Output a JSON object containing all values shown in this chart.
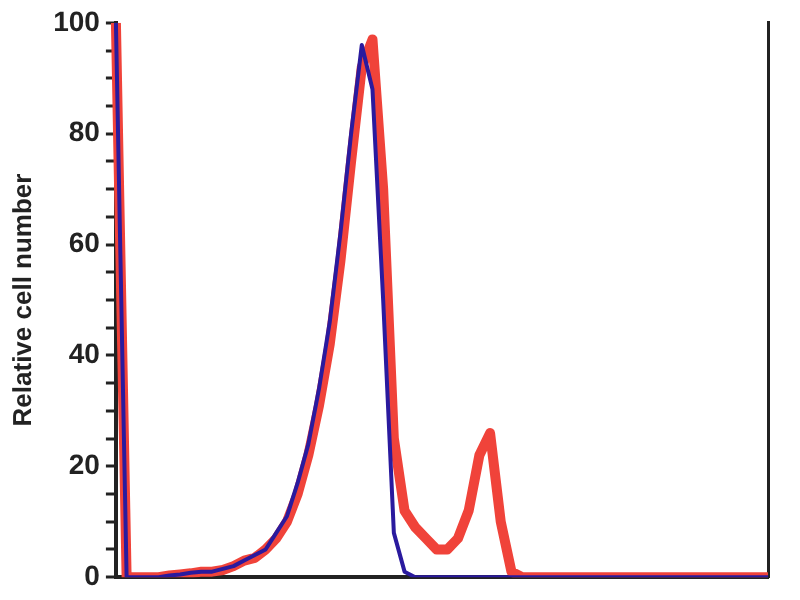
{
  "chart_data": {
    "type": "line",
    "ylabel": "Relative cell number",
    "categories": [
      null,
      null,
      null,
      null,
      null,
      null,
      null,
      null,
      null,
      null,
      null,
      null,
      null,
      null,
      null,
      null,
      null,
      null,
      null,
      null,
      null,
      null,
      null,
      null,
      null,
      null,
      null,
      null,
      null,
      null,
      null,
      null,
      null,
      null,
      null,
      null,
      null,
      null,
      null,
      null,
      null,
      null,
      null,
      null,
      null,
      null,
      null,
      null,
      null,
      null,
      null,
      null,
      null,
      null,
      null,
      null,
      null,
      null,
      null,
      null,
      null,
      null
    ],
    "series": [
      {
        "color": "#f0433a",
        "values": [
          100,
          0,
          0,
          0,
          0,
          0.3,
          0.5,
          0.7,
          1,
          1,
          1.3,
          2,
          3,
          3.5,
          5,
          7,
          10,
          15,
          22,
          31,
          42,
          57,
          75,
          92,
          97,
          70,
          25,
          12,
          9,
          7,
          5,
          5,
          7,
          12,
          22,
          26,
          10,
          1,
          0,
          0,
          0,
          0,
          0,
          0,
          0,
          0,
          0,
          0,
          0,
          0,
          0,
          0,
          0,
          0,
          0,
          0,
          0,
          0,
          0,
          0,
          0,
          0
        ]
      },
      {
        "color": "#2a1a9e",
        "values": [
          100,
          0,
          0,
          0,
          0,
          0.3,
          0.5,
          0.8,
          1,
          1,
          1.5,
          2,
          3,
          4,
          5,
          8,
          11,
          17,
          24,
          34,
          46,
          62,
          80,
          96,
          88,
          50,
          8,
          1,
          0,
          0,
          0,
          0,
          0,
          0,
          0,
          0,
          0,
          0,
          0,
          0,
          0,
          0,
          0,
          0,
          0,
          0,
          0,
          0,
          0,
          0,
          0,
          0,
          0,
          0,
          0,
          0,
          0,
          0,
          0,
          0,
          0,
          0
        ]
      }
    ],
    "ylim": [
      0,
      100
    ],
    "yticks": [
      0,
      {
        "value": 5,
        "label": null
      },
      {
        "value": 10,
        "label": null
      },
      {
        "value": 15,
        "label": null
      },
      20,
      {
        "value": 25,
        "label": null
      },
      {
        "value": 30,
        "label": null
      },
      {
        "value": 35,
        "label": null
      },
      40,
      {
        "value": 45,
        "label": null
      },
      {
        "value": 50,
        "label": null
      },
      {
        "value": 55,
        "label": null
      },
      60,
      {
        "value": 65,
        "label": null
      },
      {
        "value": 70,
        "label": null
      },
      {
        "value": 75,
        "label": null
      },
      80,
      {
        "value": 85,
        "label": null
      },
      {
        "value": 90,
        "label": null
      },
      {
        "value": 95,
        "label": null
      },
      100
    ],
    "tick_labels": "y",
    "marker": "none",
    "line_style": "solid"
  }
}
